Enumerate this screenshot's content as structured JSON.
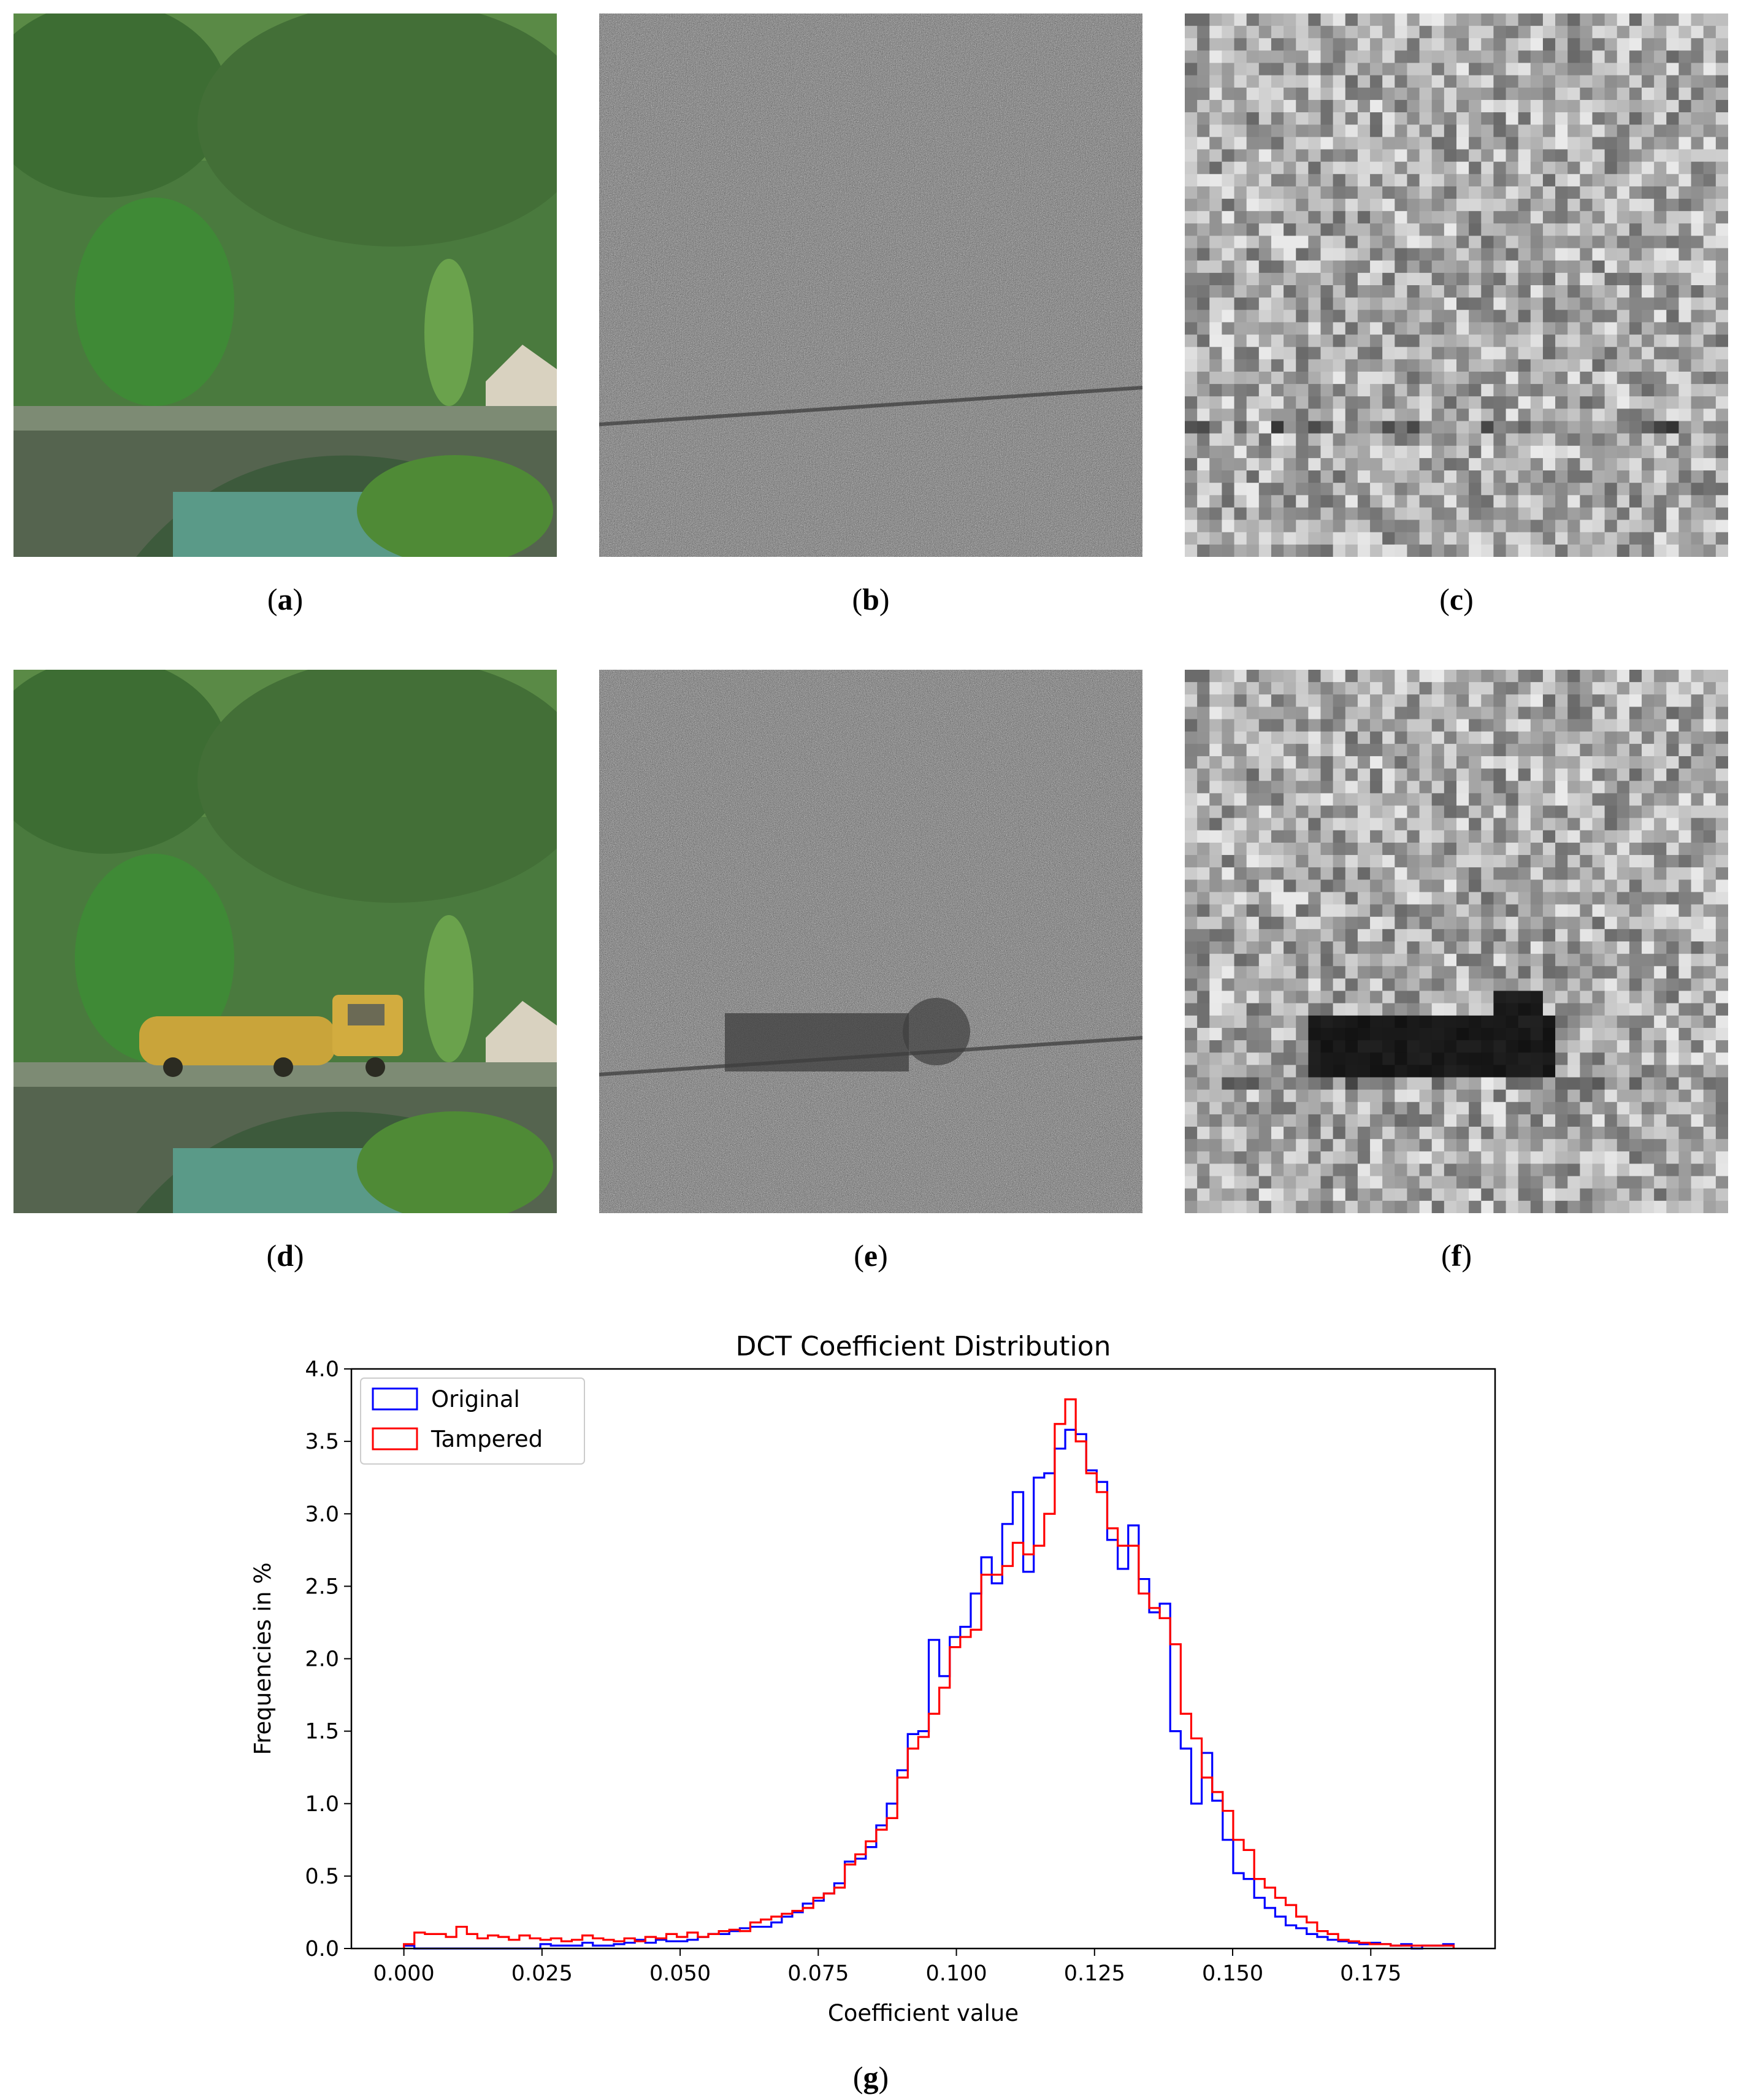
{
  "panels": [
    {
      "id": "a",
      "label": "a",
      "kind": "photo"
    },
    {
      "id": "b",
      "label": "b",
      "kind": "noise"
    },
    {
      "id": "c",
      "label": "c",
      "kind": "blocks"
    },
    {
      "id": "d",
      "label": "d",
      "kind": "photo-tampered"
    },
    {
      "id": "e",
      "label": "e",
      "kind": "noise-tampered"
    },
    {
      "id": "f",
      "label": "f",
      "kind": "blocks-tampered"
    }
  ],
  "figure_g_label": "g",
  "colors": {
    "original": "#0000ff",
    "tampered": "#ff0000",
    "foliage": "#3f7a35",
    "truck": "#c9a43a"
  },
  "chart_data": {
    "type": "histogram-step",
    "title": "DCT Coefficient Distribution",
    "xlabel": "Coefficient value",
    "ylabel": "Frequencies in %",
    "xlim": [
      -0.0095,
      0.1975
    ],
    "ylim": [
      0,
      4.0
    ],
    "xticks": [
      0.0,
      0.025,
      0.05,
      0.075,
      0.1,
      0.125,
      0.15,
      0.175
    ],
    "xtick_labels": [
      "0.000",
      "0.025",
      "0.050",
      "0.075",
      "0.100",
      "0.125",
      "0.150",
      "0.175"
    ],
    "yticks": [
      0.0,
      0.5,
      1.0,
      1.5,
      2.0,
      2.5,
      3.0,
      3.5,
      4.0
    ],
    "ytick_labels": [
      "0.0",
      "0.5",
      "1.0",
      "1.5",
      "2.0",
      "2.5",
      "3.0",
      "3.5",
      "4.0"
    ],
    "legend": {
      "position": "top-left"
    },
    "bin_start": 0.0,
    "bin_width": 0.0019,
    "series": [
      {
        "name": "Original",
        "color": "#0000ff",
        "values": [
          0.02,
          0.0,
          0.0,
          0.0,
          0.0,
          0.0,
          0.0,
          0.0,
          0.0,
          0.0,
          0.0,
          0.0,
          0.0,
          0.03,
          0.02,
          0.02,
          0.02,
          0.04,
          0.02,
          0.02,
          0.03,
          0.04,
          0.06,
          0.04,
          0.06,
          0.05,
          0.05,
          0.06,
          0.08,
          0.1,
          0.1,
          0.12,
          0.14,
          0.15,
          0.15,
          0.18,
          0.22,
          0.25,
          0.31,
          0.33,
          0.38,
          0.45,
          0.6,
          0.62,
          0.7,
          0.85,
          1.0,
          1.23,
          1.48,
          1.5,
          2.13,
          1.88,
          2.15,
          2.22,
          2.45,
          2.7,
          2.52,
          2.93,
          3.15,
          2.6,
          3.25,
          3.28,
          3.45,
          3.58,
          3.55,
          3.3,
          3.22,
          2.82,
          2.62,
          2.92,
          2.55,
          2.32,
          2.38,
          1.5,
          1.38,
          1.0,
          1.35,
          1.02,
          0.75,
          0.52,
          0.48,
          0.35,
          0.28,
          0.22,
          0.16,
          0.14,
          0.1,
          0.08,
          0.06,
          0.05,
          0.04,
          0.03,
          0.04,
          0.03,
          0.02,
          0.03,
          0.0,
          0.02,
          0.02,
          0.03
        ]
      },
      {
        "name": "Tampered",
        "color": "#ff0000",
        "values": [
          0.03,
          0.11,
          0.1,
          0.1,
          0.08,
          0.15,
          0.1,
          0.07,
          0.09,
          0.08,
          0.06,
          0.09,
          0.07,
          0.06,
          0.07,
          0.05,
          0.06,
          0.09,
          0.07,
          0.06,
          0.05,
          0.07,
          0.05,
          0.08,
          0.07,
          0.1,
          0.08,
          0.11,
          0.08,
          0.1,
          0.12,
          0.13,
          0.12,
          0.18,
          0.2,
          0.22,
          0.24,
          0.26,
          0.28,
          0.35,
          0.38,
          0.42,
          0.58,
          0.65,
          0.74,
          0.82,
          0.9,
          1.18,
          1.38,
          1.46,
          1.62,
          1.8,
          2.08,
          2.15,
          2.2,
          2.58,
          2.58,
          2.64,
          2.8,
          2.72,
          2.78,
          3.0,
          3.62,
          3.79,
          3.5,
          3.28,
          3.15,
          2.9,
          2.78,
          2.78,
          2.45,
          2.35,
          2.28,
          2.1,
          1.62,
          1.45,
          1.18,
          1.08,
          0.95,
          0.75,
          0.68,
          0.48,
          0.42,
          0.35,
          0.3,
          0.22,
          0.18,
          0.12,
          0.1,
          0.06,
          0.05,
          0.04,
          0.03,
          0.03,
          0.02,
          0.02,
          0.02,
          0.02,
          0.02,
          0.02
        ]
      }
    ]
  }
}
